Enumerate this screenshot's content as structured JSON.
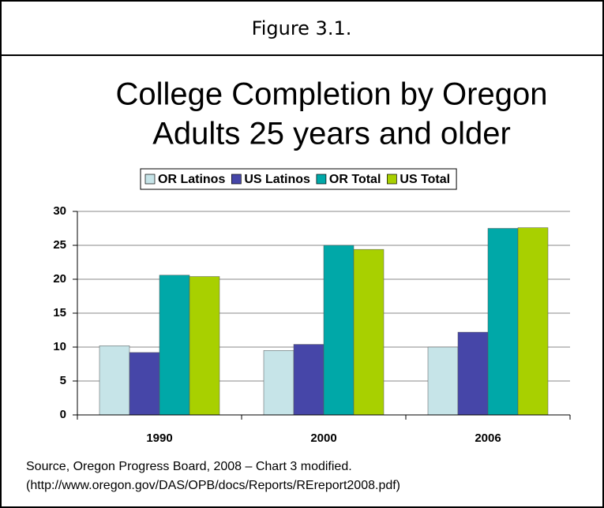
{
  "figure_label": "Figure 3.1.",
  "chart_data": {
    "type": "bar",
    "title_lines": [
      "College Completion by Oregon",
      "Adults 25 years and older"
    ],
    "categories": [
      "1990",
      "2000",
      "2006"
    ],
    "series": [
      {
        "name": "OR Latinos",
        "color": "#c6e4e8",
        "values": [
          10.2,
          9.5,
          10.0
        ]
      },
      {
        "name": "US Latinos",
        "color": "#4646a8",
        "values": [
          9.2,
          10.4,
          12.2
        ]
      },
      {
        "name": "OR Total",
        "color": "#00a8a8",
        "values": [
          20.6,
          25.0,
          27.5
        ]
      },
      {
        "name": "US Total",
        "color": "#a8d000",
        "values": [
          20.4,
          24.4,
          27.6
        ]
      }
    ],
    "ylim": [
      0,
      30
    ],
    "yticks": [
      0,
      5,
      10,
      15,
      20,
      25,
      30
    ],
    "grid": true,
    "legend": "top"
  },
  "source_lines": [
    "Source, Oregon Progress Board, 2008 – Chart 3 modified.",
    "(http://www.oregon.gov/DAS/OPB/docs/Reports/REreport2008.pdf)"
  ]
}
